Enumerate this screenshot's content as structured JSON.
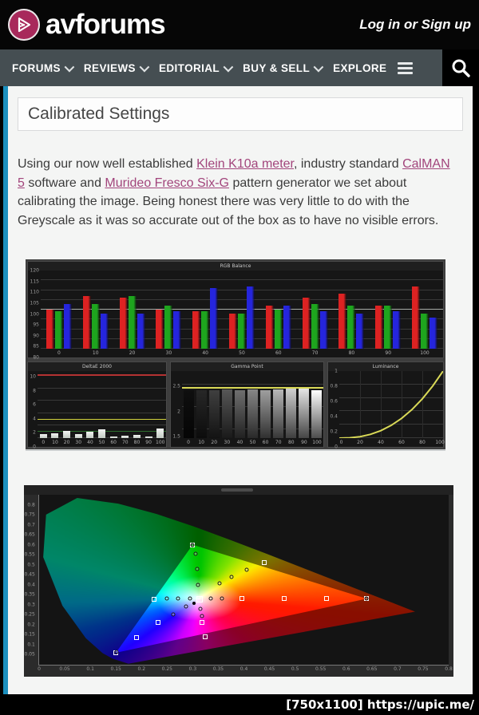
{
  "header": {
    "logo_text": "avforums",
    "auth_text": "Log in or Sign up"
  },
  "nav": {
    "items": [
      {
        "label": "FORUMS",
        "chevron": true
      },
      {
        "label": "REVIEWS",
        "chevron": true
      },
      {
        "label": "EDITORIAL",
        "chevron": true
      },
      {
        "label": "BUY & SELL",
        "chevron": true
      },
      {
        "label": "EXPLORE",
        "chevron": false
      }
    ]
  },
  "page": {
    "title": "Calibrated Settings"
  },
  "article": {
    "paragraph": [
      {
        "t": "Using our now well established "
      },
      {
        "l": "Klein K10a meter"
      },
      {
        "t": ", industry standard "
      },
      {
        "l": "CalMAN 5"
      },
      {
        "t": " software and "
      },
      {
        "l": "Murideo Fresco Six-G"
      },
      {
        "t": " pattern generator we set about calibrating the image. Being honest there was very little to do with the Greyscale as it was so accurate out of the box as to have no visible errors."
      }
    ],
    "link_color": "#a2457c"
  },
  "footer": {
    "watermark": "[750x1100] https://upic.me/"
  },
  "chart_data": [
    {
      "id": "rgb_balance",
      "type": "bar",
      "title": "RGB Balance",
      "categories": [
        "0",
        "10",
        "20",
        "30",
        "40",
        "50",
        "60",
        "70",
        "80",
        "90",
        "100"
      ],
      "series": [
        {
          "name": "Red",
          "color": "#dd2222",
          "values": [
            100,
            107,
            106,
            100,
            99,
            98,
            102,
            106,
            108,
            102,
            112
          ]
        },
        {
          "name": "Green",
          "color": "#1ea51e",
          "values": [
            99,
            103,
            107,
            102,
            99,
            98,
            100,
            103,
            102,
            102,
            98
          ]
        },
        {
          "name": "Blue",
          "color": "#2525dd",
          "values": [
            103,
            98,
            98,
            99,
            111,
            112,
            102,
            99,
            98,
            99,
            96
          ]
        }
      ],
      "ylim": [
        80,
        120
      ],
      "yticks": [
        80,
        85,
        90,
        95,
        100,
        105,
        110,
        115,
        120
      ],
      "reference_line": 100
    },
    {
      "id": "deltae_2000",
      "type": "bar",
      "title": "DeltaE 2000",
      "categories": [
        "0",
        "10",
        "20",
        "30",
        "40",
        "50",
        "60",
        "70",
        "80",
        "90",
        "100"
      ],
      "values": [
        0.7,
        0.8,
        1.2,
        0.7,
        1.0,
        1.4,
        0.2,
        0.4,
        0.5,
        0.3,
        1.5
      ],
      "ylim": [
        0,
        10.8
      ],
      "yticks": [
        0,
        2,
        4,
        6,
        8,
        10
      ],
      "threshold_lines": [
        {
          "y": 10,
          "color": "#b43232"
        },
        {
          "y": 3,
          "color": "#d2d23c"
        },
        {
          "y": 1,
          "color": "#2d6e2d"
        }
      ]
    },
    {
      "id": "gamma_point",
      "type": "bar",
      "title": "Gamma Point",
      "categories": [
        "0",
        "10",
        "20",
        "30",
        "40",
        "50",
        "60",
        "70",
        "80",
        "90",
        "100"
      ],
      "values": [
        2.38,
        2.37,
        2.38,
        2.39,
        2.38,
        2.39,
        2.38,
        2.39,
        2.4,
        2.42,
        2.38
      ],
      "ylim": [
        1.3,
        2.8
      ],
      "yticks": [
        1.5,
        2,
        2.5
      ],
      "target_line": 2.4,
      "target_color": "#d9d957"
    },
    {
      "id": "luminance",
      "type": "line",
      "title": "Luminance",
      "color": "#d9d957",
      "x": [
        0,
        10,
        20,
        30,
        40,
        50,
        60,
        70,
        80,
        90,
        100
      ],
      "values": [
        0,
        0.004,
        0.021,
        0.056,
        0.111,
        0.19,
        0.294,
        0.425,
        0.586,
        0.777,
        1
      ],
      "xticks": [
        0,
        20,
        40,
        60,
        80,
        100
      ],
      "yticks": [
        0,
        0.2,
        0.4,
        0.6,
        0.8,
        1
      ],
      "ylim": [
        0,
        1
      ]
    },
    {
      "id": "cie_gamut",
      "type": "scatter",
      "title": "CIE chromaticity gamut",
      "xlim": [
        0,
        0.8
      ],
      "ylim": [
        0,
        0.85
      ],
      "xticks": [
        0,
        0.05,
        0.1,
        0.15,
        0.2,
        0.25,
        0.3,
        0.35,
        0.4,
        0.45,
        0.5,
        0.55,
        0.6,
        0.65,
        0.7,
        0.75,
        0.8
      ],
      "yticks": [
        0,
        0.05,
        0.1,
        0.15,
        0.2,
        0.25,
        0.3,
        0.35,
        0.4,
        0.45,
        0.5,
        0.55,
        0.6,
        0.65,
        0.7,
        0.75,
        0.8
      ],
      "gamut_triangle": {
        "red": [
          0.64,
          0.33
        ],
        "green": [
          0.3,
          0.6
        ],
        "blue": [
          0.15,
          0.06
        ]
      },
      "white_point": [
        0.313,
        0.329
      ],
      "targets": [
        [
          0.64,
          0.33
        ],
        [
          0.561,
          0.33
        ],
        [
          0.478,
          0.33
        ],
        [
          0.396,
          0.33
        ],
        [
          0.225,
          0.329
        ],
        [
          0.3,
          0.6
        ],
        [
          0.15,
          0.06
        ],
        [
          0.19,
          0.135
        ],
        [
          0.232,
          0.212
        ],
        [
          0.318,
          0.21
        ],
        [
          0.325,
          0.14
        ],
        [
          0.44,
          0.51
        ]
      ],
      "measurements": [
        [
          0.335,
          0.33
        ],
        [
          0.357,
          0.331
        ],
        [
          0.25,
          0.33
        ],
        [
          0.272,
          0.33
        ],
        [
          0.294,
          0.33
        ],
        [
          0.306,
          0.555
        ],
        [
          0.308,
          0.48
        ],
        [
          0.31,
          0.4
        ],
        [
          0.352,
          0.408
        ],
        [
          0.376,
          0.44
        ],
        [
          0.405,
          0.475
        ],
        [
          0.315,
          0.28
        ],
        [
          0.318,
          0.245
        ],
        [
          0.287,
          0.292
        ],
        [
          0.262,
          0.253
        ],
        [
          0.64,
          0.332
        ],
        [
          0.3,
          0.597
        ],
        [
          0.152,
          0.062
        ]
      ],
      "reference_point": [
        0.303,
        0.308
      ]
    }
  ]
}
